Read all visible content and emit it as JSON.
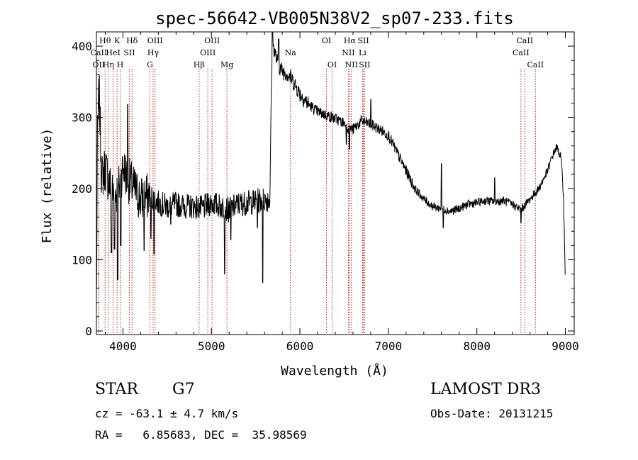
{
  "chart_data": {
    "type": "line",
    "title": "spec-56642-VB005N38V2_sp07-233.fits",
    "xlabel": "Wavelength (Å)",
    "ylabel": "Flux (relative)",
    "xlim": [
      3700,
      9100
    ],
    "ylim": [
      -5,
      420
    ],
    "xticks": [
      4000,
      5000,
      6000,
      7000,
      8000,
      9000
    ],
    "yticks": [
      0,
      100,
      200,
      300,
      400
    ],
    "grid": false,
    "legend": "none",
    "line_color": "#000000",
    "marker_color": "#b22222",
    "lines": [
      {
        "label": "CaII",
        "x": 3727,
        "row": 2
      },
      {
        "label": "Hθ",
        "x": 3798,
        "row": 1
      },
      {
        "label": "OII",
        "x": 3727,
        "row": 3
      },
      {
        "label": "Hη",
        "x": 3835,
        "row": 3
      },
      {
        "label": "HeI",
        "x": 3889,
        "row": 2
      },
      {
        "label": "K",
        "x": 3934,
        "row": 1
      },
      {
        "label": "H",
        "x": 3969,
        "row": 3
      },
      {
        "label": "SII",
        "x": 4072,
        "row": 2
      },
      {
        "label": "Hδ",
        "x": 4102,
        "row": 1
      },
      {
        "label": "G",
        "x": 4305,
        "row": 3
      },
      {
        "label": "Hγ",
        "x": 4341,
        "row": 2
      },
      {
        "label": "OIII",
        "x": 4363,
        "row": 1
      },
      {
        "label": "Hβ",
        "x": 4861,
        "row": 3
      },
      {
        "label": "OIII",
        "x": 4959,
        "row": 2
      },
      {
        "label": "OIII",
        "x": 5007,
        "row": 1
      },
      {
        "label": "Mg",
        "x": 5175,
        "row": 3
      },
      {
        "label": "Na",
        "x": 5893,
        "row": 2
      },
      {
        "label": "OI",
        "x": 6300,
        "row": 1
      },
      {
        "label": "OI",
        "x": 6364,
        "row": 3
      },
      {
        "label": "NII",
        "x": 6548,
        "row": 2
      },
      {
        "label": "Hα",
        "x": 6563,
        "row": 1
      },
      {
        "label": "NII",
        "x": 6583,
        "row": 3
      },
      {
        "label": "Li",
        "x": 6708,
        "row": 2
      },
      {
        "label": "SII",
        "x": 6717,
        "row": 1
      },
      {
        "label": "SII",
        "x": 6731,
        "row": 3
      },
      {
        "label": "CaII",
        "x": 8498,
        "row": 2
      },
      {
        "label": "CaII",
        "x": 8542,
        "row": 1
      },
      {
        "label": "CaII",
        "x": 8662,
        "row": 3
      }
    ],
    "spectrum_keypoints": [
      [
        3700,
        0
      ],
      [
        3710,
        260
      ],
      [
        3730,
        340
      ],
      [
        3760,
        215
      ],
      [
        3800,
        230
      ],
      [
        3850,
        205
      ],
      [
        3900,
        190
      ],
      [
        3950,
        200
      ],
      [
        4000,
        230
      ],
      [
        4050,
        215
      ],
      [
        4100,
        205
      ],
      [
        4200,
        185
      ],
      [
        4300,
        190
      ],
      [
        4400,
        180
      ],
      [
        4500,
        175
      ],
      [
        4600,
        178
      ],
      [
        4700,
        175
      ],
      [
        4800,
        175
      ],
      [
        4900,
        172
      ],
      [
        5000,
        180
      ],
      [
        5100,
        175
      ],
      [
        5200,
        170
      ],
      [
        5300,
        178
      ],
      [
        5400,
        180
      ],
      [
        5500,
        182
      ],
      [
        5600,
        185
      ],
      [
        5660,
        185
      ],
      [
        5680,
        360
      ],
      [
        5700,
        400
      ],
      [
        5750,
        375
      ],
      [
        5800,
        365
      ],
      [
        5850,
        362
      ],
      [
        5900,
        355
      ],
      [
        5950,
        345
      ],
      [
        6000,
        333
      ],
      [
        6100,
        318
      ],
      [
        6200,
        308
      ],
      [
        6300,
        303
      ],
      [
        6400,
        298
      ],
      [
        6500,
        292
      ],
      [
        6550,
        285
      ],
      [
        6600,
        283
      ],
      [
        6700,
        295
      ],
      [
        6800,
        290
      ],
      [
        6900,
        283
      ],
      [
        7000,
        275
      ],
      [
        7100,
        250
      ],
      [
        7200,
        225
      ],
      [
        7300,
        200
      ],
      [
        7400,
        185
      ],
      [
        7500,
        175
      ],
      [
        7600,
        172
      ],
      [
        7700,
        168
      ],
      [
        7800,
        172
      ],
      [
        7900,
        178
      ],
      [
        8000,
        180
      ],
      [
        8100,
        183
      ],
      [
        8200,
        182
      ],
      [
        8300,
        183
      ],
      [
        8400,
        178
      ],
      [
        8500,
        170
      ],
      [
        8550,
        178
      ],
      [
        8600,
        185
      ],
      [
        8700,
        200
      ],
      [
        8800,
        225
      ],
      [
        8850,
        245
      ],
      [
        8900,
        258
      ],
      [
        8950,
        245
      ],
      [
        8980,
        190
      ],
      [
        9000,
        60
      ]
    ],
    "spectrum_features": [
      [
        3870,
        110
      ],
      [
        3905,
        115
      ],
      [
        3940,
        72
      ],
      [
        3975,
        120
      ],
      [
        4055,
        318
      ],
      [
        4240,
        113
      ],
      [
        4315,
        130
      ],
      [
        4350,
        108
      ],
      [
        4540,
        150
      ],
      [
        5150,
        80
      ],
      [
        5220,
        128
      ],
      [
        5520,
        145
      ],
      [
        5580,
        68
      ],
      [
        5690,
        420
      ],
      [
        5760,
        410
      ],
      [
        6525,
        262
      ],
      [
        6560,
        255
      ],
      [
        6800,
        325
      ],
      [
        7600,
        235
      ],
      [
        7620,
        145
      ],
      [
        8200,
        215
      ],
      [
        8500,
        152
      ]
    ]
  },
  "info": {
    "object_type": "STAR",
    "subclass": "G7",
    "survey": "LAMOST DR3",
    "cz_line": "cz = -63.1 ± 4.7 km/s",
    "obs_date_line": "Obs-Date: 20131215",
    "coords_line": "RA =   6.85683, DEC =  35.98569"
  }
}
